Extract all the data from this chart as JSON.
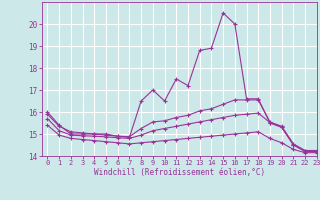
{
  "xlabel": "Windchill (Refroidissement éolien,°C)",
  "xlim": [
    -0.5,
    23
  ],
  "ylim": [
    14,
    21
  ],
  "yticks": [
    14,
    15,
    16,
    17,
    18,
    19,
    20
  ],
  "xticks": [
    0,
    1,
    2,
    3,
    4,
    5,
    6,
    7,
    8,
    9,
    10,
    11,
    12,
    13,
    14,
    15,
    16,
    17,
    18,
    19,
    20,
    21,
    22,
    23
  ],
  "bg_color": "#cce8e8",
  "line_color": "#993399",
  "grid_color": "#ffffff",
  "lines": [
    {
      "x": [
        0,
        1,
        2,
        3,
        4,
        5,
        6,
        7,
        8,
        9,
        10,
        11,
        12,
        13,
        14,
        15,
        16,
        17,
        18,
        19,
        20,
        21,
        22,
        23
      ],
      "y": [
        16.0,
        15.4,
        15.0,
        15.0,
        15.0,
        15.0,
        14.9,
        14.85,
        16.5,
        17.0,
        16.5,
        17.5,
        17.2,
        18.8,
        18.9,
        20.5,
        20.0,
        16.6,
        16.6,
        15.5,
        15.3,
        14.5,
        14.2,
        14.2
      ]
    },
    {
      "x": [
        0,
        1,
        2,
        3,
        4,
        5,
        6,
        7,
        8,
        9,
        10,
        11,
        12,
        13,
        14,
        15,
        16,
        17,
        18,
        19,
        20,
        21,
        22,
        23
      ],
      "y": [
        15.9,
        15.35,
        15.1,
        15.05,
        15.0,
        14.95,
        14.9,
        14.88,
        15.25,
        15.55,
        15.6,
        15.75,
        15.85,
        16.05,
        16.15,
        16.35,
        16.55,
        16.55,
        16.55,
        15.55,
        15.35,
        14.55,
        14.25,
        14.25
      ]
    },
    {
      "x": [
        0,
        1,
        2,
        3,
        4,
        5,
        6,
        7,
        8,
        9,
        10,
        11,
        12,
        13,
        14,
        15,
        16,
        17,
        18,
        19,
        20,
        21,
        22,
        23
      ],
      "y": [
        15.7,
        15.15,
        14.95,
        14.92,
        14.9,
        14.87,
        14.83,
        14.8,
        14.95,
        15.15,
        15.25,
        15.35,
        15.45,
        15.55,
        15.65,
        15.75,
        15.85,
        15.9,
        15.95,
        15.52,
        15.32,
        14.52,
        14.22,
        14.22
      ]
    },
    {
      "x": [
        0,
        1,
        2,
        3,
        4,
        5,
        6,
        7,
        8,
        9,
        10,
        11,
        12,
        13,
        14,
        15,
        16,
        17,
        18,
        19,
        20,
        21,
        22,
        23
      ],
      "y": [
        15.4,
        14.95,
        14.8,
        14.75,
        14.7,
        14.65,
        14.6,
        14.55,
        14.6,
        14.65,
        14.7,
        14.75,
        14.8,
        14.85,
        14.9,
        14.95,
        15.0,
        15.05,
        15.1,
        14.8,
        14.6,
        14.3,
        14.15,
        14.15
      ]
    }
  ]
}
